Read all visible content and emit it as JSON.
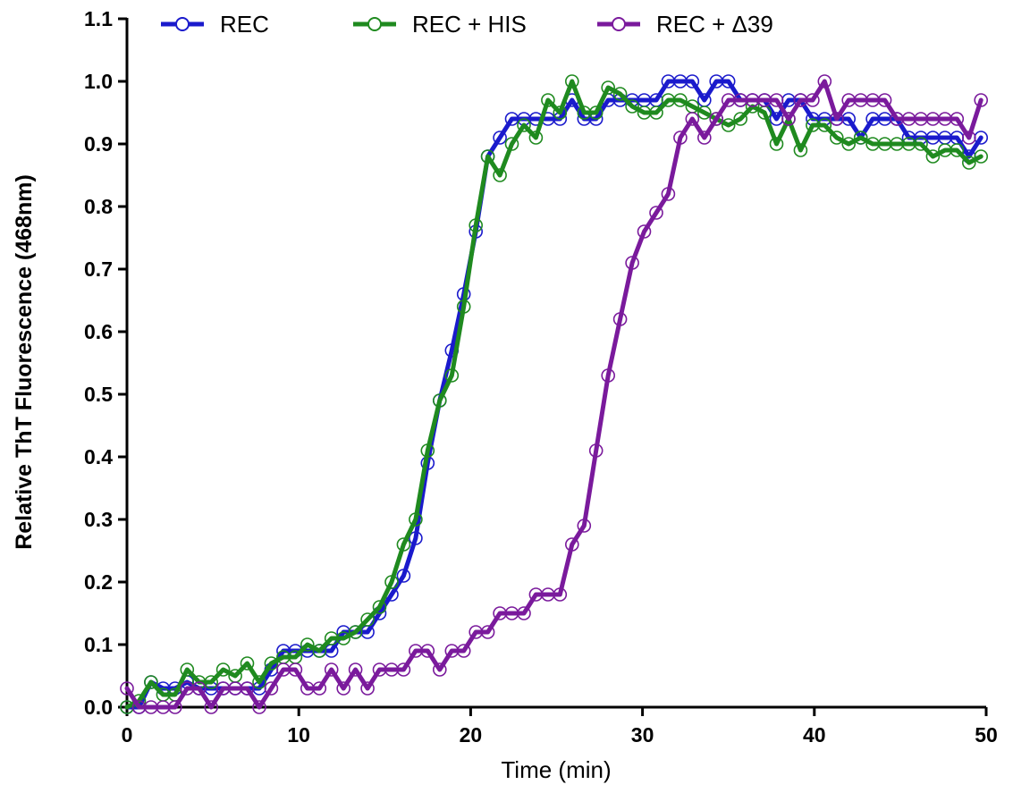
{
  "chart_data": {
    "type": "line",
    "title": "",
    "xlabel": "Time (min)",
    "ylabel": "Relative ThT Fluorescence (468nm)",
    "xlim": [
      0,
      50
    ],
    "ylim": [
      0,
      1.1
    ],
    "xticks": [
      0,
      10,
      20,
      30,
      40,
      50
    ],
    "xtick_labels": [
      "0",
      "10",
      "20",
      "30",
      "40",
      "50"
    ],
    "yticks": [
      0,
      0.1,
      0.2,
      0.3,
      0.4,
      0.5,
      0.6,
      0.7,
      0.8,
      0.9,
      1.0,
      1.1
    ],
    "ytick_labels": [
      "0.0",
      "0.1",
      "0.2",
      "0.3",
      "0.4",
      "0.5",
      "0.6",
      "0.7",
      "0.8",
      "0.9",
      "1.0",
      "1.1"
    ],
    "grid": false,
    "legend_position": "top",
    "marker": "open-circle",
    "series": [
      {
        "name": "REC",
        "color": "#1a1acc",
        "x": [
          0,
          0.7,
          1.4,
          2.1,
          2.8,
          3.5,
          4.2,
          4.9,
          5.6,
          6.3,
          7.0,
          7.7,
          8.4,
          9.1,
          9.8,
          10.5,
          11.2,
          11.9,
          12.6,
          13.3,
          14.0,
          14.7,
          15.4,
          16.1,
          16.8,
          17.5,
          18.2,
          18.9,
          19.6,
          20.3,
          21.0,
          21.7,
          22.4,
          23.1,
          23.8,
          24.5,
          25.2,
          25.9,
          26.6,
          27.3,
          28.0,
          28.7,
          29.4,
          30.1,
          30.8,
          31.5,
          32.2,
          32.9,
          33.6,
          34.3,
          35.0,
          35.7,
          36.4,
          37.1,
          37.8,
          38.5,
          39.2,
          39.9,
          40.6,
          41.3,
          42.0,
          42.7,
          43.4,
          44.1,
          44.8,
          45.5,
          46.2,
          46.9,
          47.6,
          48.3,
          49.0,
          49.7
        ],
        "values": [
          0.0,
          0.0,
          0.04,
          0.03,
          0.03,
          0.04,
          0.03,
          0.03,
          0.03,
          0.03,
          0.03,
          0.03,
          0.06,
          0.09,
          0.09,
          0.09,
          0.09,
          0.09,
          0.12,
          0.12,
          0.12,
          0.15,
          0.18,
          0.21,
          0.27,
          0.39,
          0.49,
          0.57,
          0.66,
          0.76,
          0.88,
          0.91,
          0.94,
          0.94,
          0.94,
          0.94,
          0.94,
          0.97,
          0.94,
          0.94,
          0.97,
          0.97,
          0.97,
          0.97,
          0.97,
          1.0,
          1.0,
          1.0,
          0.97,
          1.0,
          1.0,
          0.97,
          0.97,
          0.97,
          0.94,
          0.97,
          0.97,
          0.94,
          0.94,
          0.94,
          0.94,
          0.91,
          0.94,
          0.94,
          0.94,
          0.91,
          0.91,
          0.91,
          0.91,
          0.91,
          0.88,
          0.91
        ]
      },
      {
        "name": "REC + HIS",
        "color": "#1f8a1f",
        "x": [
          0,
          0.7,
          1.4,
          2.1,
          2.8,
          3.5,
          4.2,
          4.9,
          5.6,
          6.3,
          7.0,
          7.7,
          8.4,
          9.1,
          9.8,
          10.5,
          11.2,
          11.9,
          12.6,
          13.3,
          14.0,
          14.7,
          15.4,
          16.1,
          16.8,
          17.5,
          18.2,
          18.9,
          19.6,
          20.3,
          21.0,
          21.7,
          22.4,
          23.1,
          23.8,
          24.5,
          25.2,
          25.9,
          26.6,
          27.3,
          28.0,
          28.7,
          29.4,
          30.1,
          30.8,
          31.5,
          32.2,
          32.9,
          33.6,
          34.3,
          35.0,
          35.7,
          36.4,
          37.1,
          37.8,
          38.5,
          39.2,
          39.9,
          40.6,
          41.3,
          42.0,
          42.7,
          43.4,
          44.1,
          44.8,
          45.5,
          46.2,
          46.9,
          47.6,
          48.3,
          49.0,
          49.7
        ],
        "values": [
          0.0,
          0.01,
          0.04,
          0.02,
          0.02,
          0.06,
          0.04,
          0.04,
          0.06,
          0.05,
          0.07,
          0.04,
          0.07,
          0.08,
          0.08,
          0.1,
          0.09,
          0.11,
          0.11,
          0.12,
          0.14,
          0.16,
          0.2,
          0.26,
          0.3,
          0.41,
          0.49,
          0.53,
          0.64,
          0.77,
          0.88,
          0.85,
          0.9,
          0.93,
          0.91,
          0.97,
          0.95,
          1.0,
          0.95,
          0.95,
          0.99,
          0.98,
          0.96,
          0.95,
          0.95,
          0.97,
          0.97,
          0.96,
          0.95,
          0.94,
          0.93,
          0.94,
          0.96,
          0.95,
          0.9,
          0.94,
          0.89,
          0.93,
          0.93,
          0.91,
          0.9,
          0.91,
          0.9,
          0.9,
          0.9,
          0.9,
          0.9,
          0.88,
          0.89,
          0.89,
          0.87,
          0.88
        ]
      },
      {
        "name": "REC + Δ39",
        "color": "#7a1a9c",
        "x": [
          0,
          0.7,
          1.4,
          2.1,
          2.8,
          3.5,
          4.2,
          4.9,
          5.6,
          6.3,
          7.0,
          7.7,
          8.4,
          9.1,
          9.8,
          10.5,
          11.2,
          11.9,
          12.6,
          13.3,
          14.0,
          14.7,
          15.4,
          16.1,
          16.8,
          17.5,
          18.2,
          18.9,
          19.6,
          20.3,
          21.0,
          21.7,
          22.4,
          23.1,
          23.8,
          24.5,
          25.2,
          25.9,
          26.6,
          27.3,
          28.0,
          28.7,
          29.4,
          30.1,
          30.8,
          31.5,
          32.2,
          32.9,
          33.6,
          34.3,
          35.0,
          35.7,
          36.4,
          37.1,
          37.8,
          38.5,
          39.2,
          39.9,
          40.6,
          41.3,
          42.0,
          42.7,
          43.4,
          44.1,
          44.8,
          45.5,
          46.2,
          46.9,
          47.6,
          48.3,
          49.0,
          49.7
        ],
        "values": [
          0.03,
          0.0,
          0.0,
          0.0,
          0.0,
          0.03,
          0.03,
          0.0,
          0.03,
          0.03,
          0.03,
          0.0,
          0.03,
          0.06,
          0.06,
          0.03,
          0.03,
          0.06,
          0.03,
          0.06,
          0.03,
          0.06,
          0.06,
          0.06,
          0.09,
          0.09,
          0.06,
          0.09,
          0.09,
          0.12,
          0.12,
          0.15,
          0.15,
          0.15,
          0.18,
          0.18,
          0.18,
          0.26,
          0.29,
          0.41,
          0.53,
          0.62,
          0.71,
          0.76,
          0.79,
          0.82,
          0.91,
          0.94,
          0.91,
          0.94,
          0.97,
          0.97,
          0.97,
          0.97,
          0.97,
          0.94,
          0.97,
          0.97,
          1.0,
          0.94,
          0.97,
          0.97,
          0.97,
          0.97,
          0.94,
          0.94,
          0.94,
          0.94,
          0.94,
          0.94,
          0.91,
          0.97
        ]
      }
    ]
  }
}
